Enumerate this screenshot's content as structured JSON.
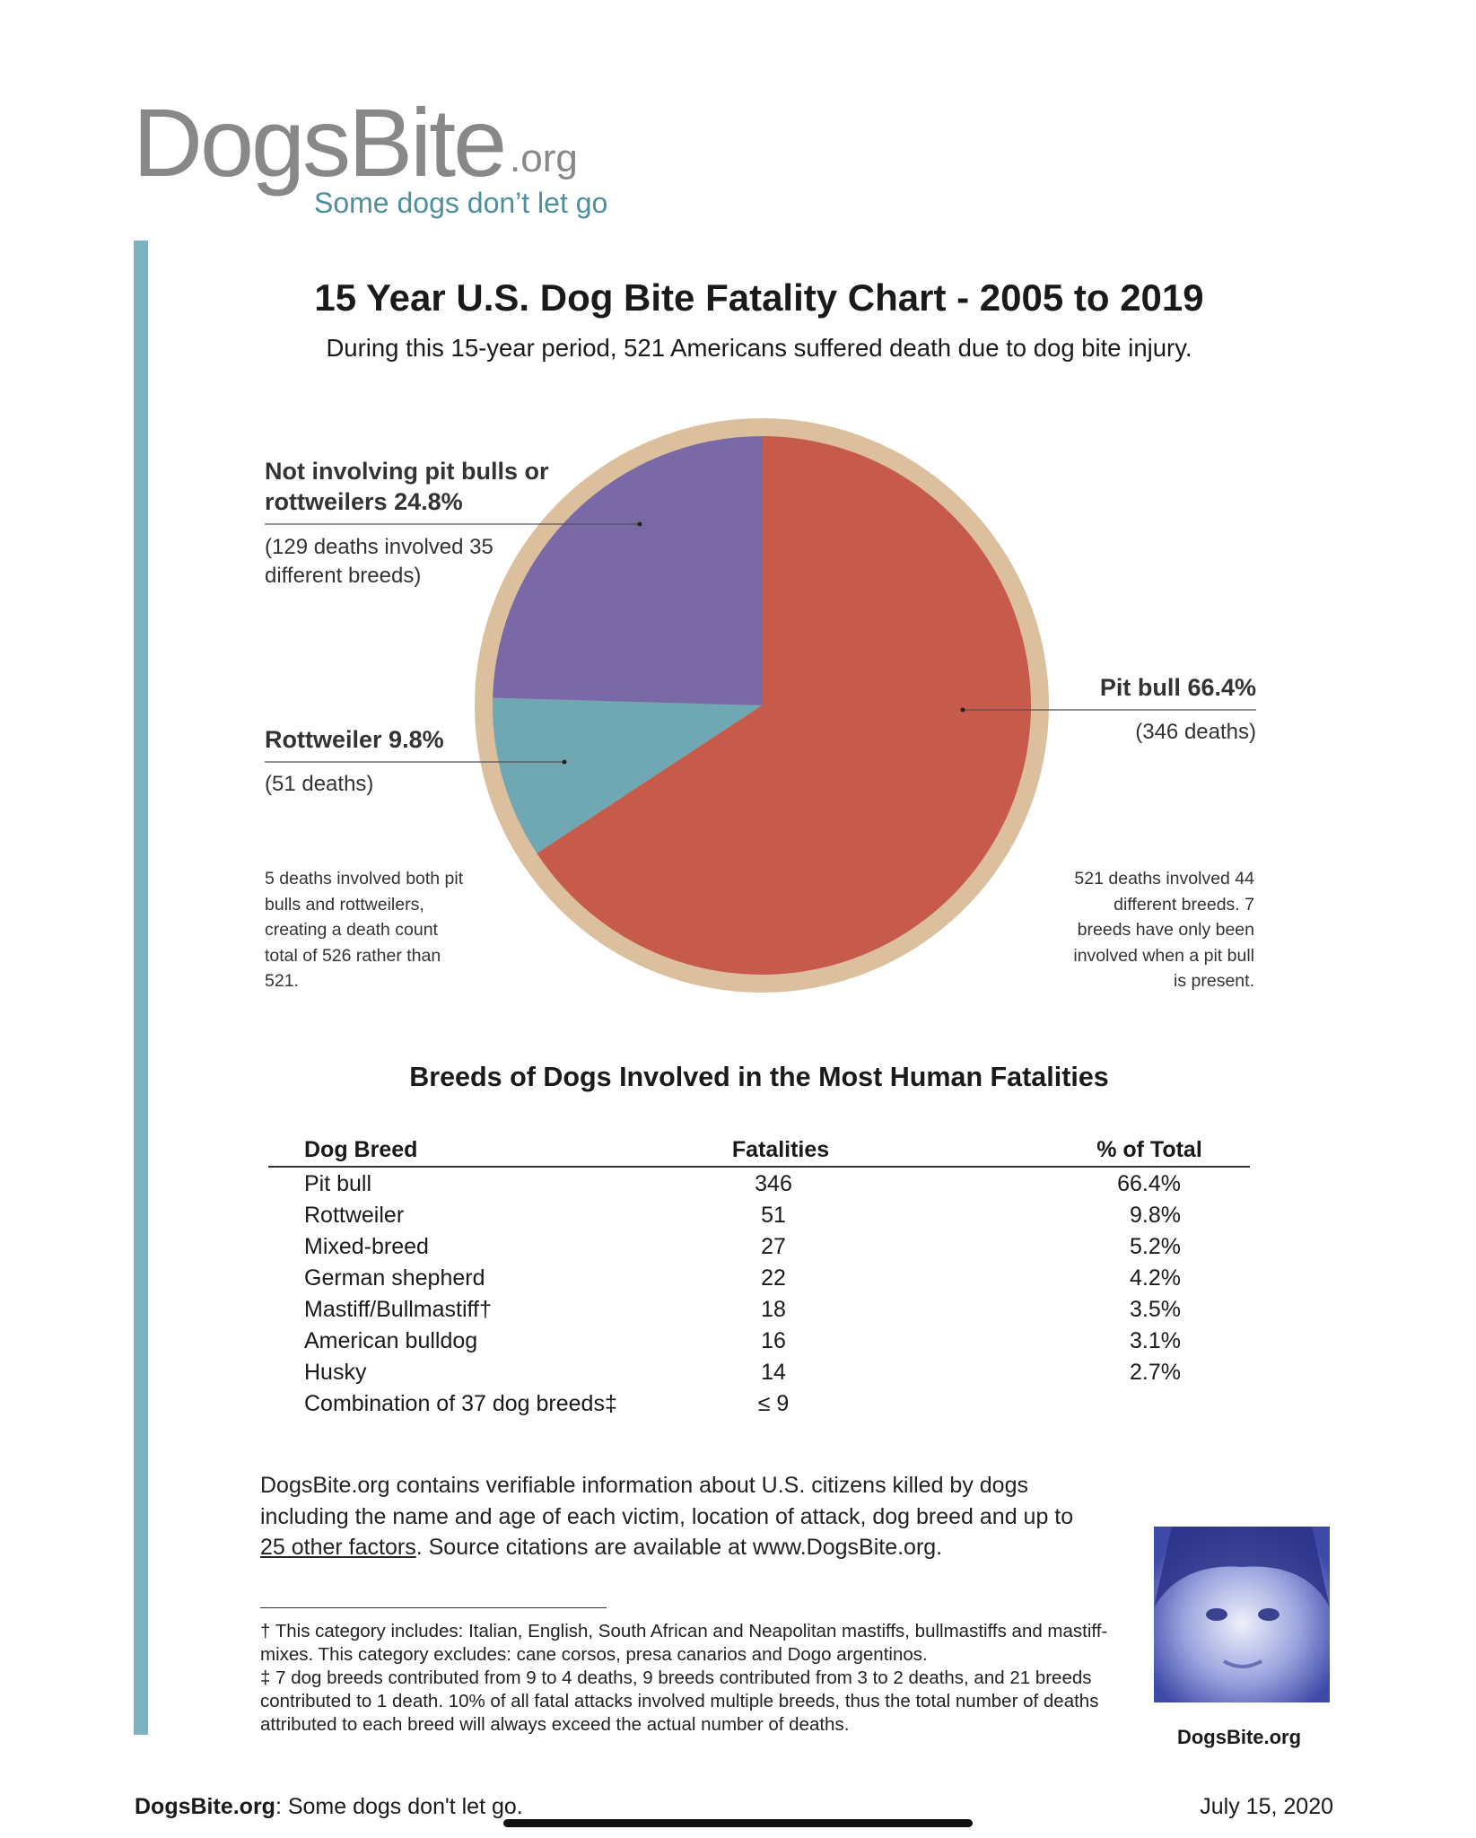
{
  "logo": {
    "name": "DogsBite",
    "suffix": ".org",
    "tagline": "Some dogs don’t let go"
  },
  "chart_data": {
    "type": "pie",
    "title": "15 Year U.S. Dog Bite Fatality Chart - 2005 to 2019",
    "subtitle": "During this 15-year period, 521 Americans suffered death due to dog bite injury.",
    "categories": [
      "Pit bull",
      "Rottweiler",
      "Not involving pit bulls or rottweilers"
    ],
    "values": [
      66.4,
      9.8,
      24.8
    ],
    "value_labels": [
      "66.4%",
      "9.8%",
      "24.8%"
    ],
    "colors": [
      "#c65a4b",
      "#6fa8b3",
      "#7a69a7"
    ],
    "ring_color": "#dcc09e",
    "annotations": [
      "(346 deaths)",
      "(51 deaths)",
      "(129 deaths involved 35 different breeds)"
    ],
    "notes": [
      "5 deaths involved both pit bulls and rottweilers, creating a death count total of 526 rather than 521.",
      "521 deaths involved 44 different breeds. 7 breeds have only been involved when a pit bull is present."
    ]
  },
  "table": {
    "title": "Breeds of Dogs Involved in the Most Human Fatalities",
    "header": [
      "Dog Breed",
      "Fatalities",
      "% of Total"
    ],
    "rows": [
      [
        "Pit bull",
        "346",
        "66.4%"
      ],
      [
        "Rottweiler",
        "51",
        "9.8%"
      ],
      [
        "Mixed-breed",
        "27",
        "5.2%"
      ],
      [
        "German shepherd",
        "22",
        "4.2%"
      ],
      [
        "Mastiff/Bullmastiff†",
        "18",
        "3.5%"
      ],
      [
        "American bulldog",
        "16",
        "3.1%"
      ],
      [
        "Husky",
        "14",
        "2.7%"
      ],
      [
        "Combination of 37 dog breeds‡",
        "≤ 9",
        ""
      ]
    ]
  },
  "paragraph": {
    "before": "DogsBite.org contains verifiable information about U.S. citizens killed by dogs including the name and age of each victim, location of attack, dog breed and up to ",
    "link": "25 other factors",
    "after": ". Source citations are available at www.DogsBite.org."
  },
  "footnotes": [
    "† This category includes: Italian, English, South African and Neapolitan mastiffs, bullmastiffs and mastiff-mixes. This category excludes: cane corsos, presa canarios and Dogo argentinos.",
    "‡ 7 dog breeds contributed from 9 to 4 deaths, 9 breeds contributed from 3 to 2 deaths, and 21 breeds contributed to 1 death. 10% of all fatal attacks involved multiple breeds, thus the total number of deaths attributed to each breed will always exceed the actual number of deaths."
  ],
  "photo_caption": "DogsBite.org",
  "footer": {
    "site": "DogsBite.org",
    "tagline": ": Some dogs don't let go.",
    "date": "July 15, 2020"
  }
}
